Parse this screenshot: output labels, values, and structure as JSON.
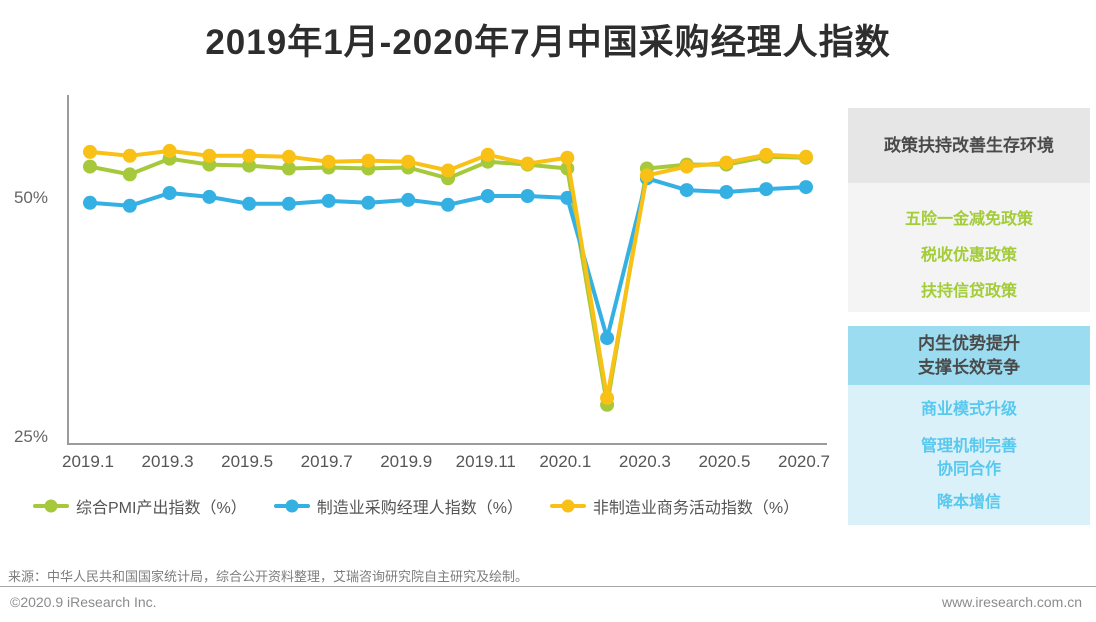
{
  "title": "2019年1月-2020年7月中国采购经理人指数",
  "chart_data": {
    "type": "line",
    "title": "2019年1月-2020年7月中国采购经理人指数",
    "categories": [
      "2019.1",
      "2019.2",
      "2019.3",
      "2019.4",
      "2019.5",
      "2019.6",
      "2019.7",
      "2019.8",
      "2019.9",
      "2019.10",
      "2019.11",
      "2019.12",
      "2020.1",
      "2020.2",
      "2020.3",
      "2020.4",
      "2020.5",
      "2020.6",
      "2020.7"
    ],
    "x_tick_labels": [
      "2019.1",
      "2019.3",
      "2019.5",
      "2019.7",
      "2019.9",
      "2019.11",
      "2020.1",
      "2020.3",
      "2020.5",
      "2020.7"
    ],
    "series": [
      {
        "name": "综合PMI产出指数（%）",
        "color": "#a5c93a",
        "values": [
          53.2,
          52.4,
          54.0,
          53.4,
          53.3,
          53.0,
          53.1,
          53.0,
          53.1,
          52.0,
          53.7,
          53.4,
          53.0,
          28.9,
          53.0,
          53.4,
          53.4,
          54.2,
          54.1
        ]
      },
      {
        "name": "制造业采购经理人指数（%）",
        "color": "#35b0e3",
        "values": [
          49.5,
          49.2,
          50.5,
          50.1,
          49.4,
          49.4,
          49.7,
          49.5,
          49.8,
          49.3,
          50.2,
          50.2,
          50.0,
          35.7,
          52.0,
          50.8,
          50.6,
          50.9,
          51.1
        ]
      },
      {
        "name": "非制造业商务活动指数（%）",
        "color": "#f9c116",
        "values": [
          54.7,
          54.3,
          54.8,
          54.3,
          54.3,
          54.2,
          53.7,
          53.8,
          53.7,
          52.8,
          54.4,
          53.5,
          54.1,
          29.6,
          52.3,
          53.2,
          53.6,
          54.4,
          54.2
        ]
      }
    ],
    "ylim": [
      25,
      60.5
    ],
    "yticks": [
      {
        "value": 50,
        "label": "50%"
      },
      {
        "value": 25,
        "label": "25%"
      }
    ],
    "legend_position": "bottom",
    "grid": false
  },
  "sidebar": {
    "green_panel": {
      "header": "政策扶持改善生存环境",
      "items": [
        "五险一金减免政策",
        "税收优惠政策",
        "扶持信贷政策"
      ]
    },
    "blue_panel": {
      "header_line1": "内生优势提升",
      "header_line2": "支撑长效竞争",
      "items": [
        "商业模式升级",
        "管理机制完善",
        "协同合作",
        "降本增信"
      ]
    }
  },
  "footer": {
    "source": "来源：中华人民共和国国家统计局，综合公开资料整理，艾瑞咨询研究院自主研究及绘制。",
    "copyright": "©2020.9 iResearch Inc.",
    "website": "www.iresearch.com.cn"
  },
  "colors": {
    "composite_green": "#a5c93a",
    "manufacturing_blue": "#35b0e3",
    "nonmanufacturing_yellow": "#f9c116",
    "green_panel_header_bg": "#e6e6e6",
    "green_panel_body_bg": "#f4f4f4",
    "blue_panel_header_bg": "#9bdcf0",
    "blue_panel_body_bg": "#daf1f9",
    "axis_gray": "#9b9b9b"
  }
}
